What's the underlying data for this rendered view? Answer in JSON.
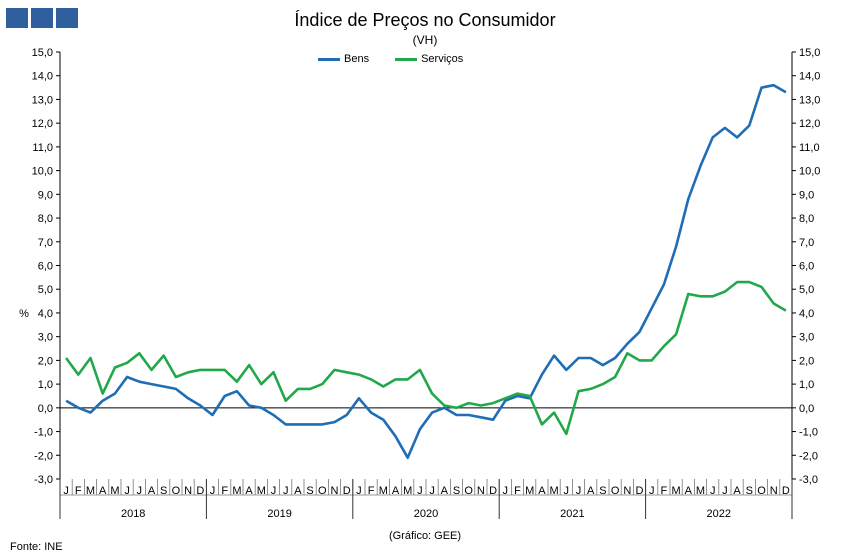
{
  "header": {
    "logo_icon": "ine-logo-icon"
  },
  "chart_data": {
    "type": "line",
    "title": "Índice de Preços no Consumidor",
    "subtitle": "(VH)",
    "ylabel": "%",
    "ylim": [
      -3.0,
      15.0
    ],
    "y_ticks": [
      "15,0",
      "14,0",
      "13,0",
      "12,0",
      "11,0",
      "10,0",
      "9,0",
      "8,0",
      "7,0",
      "6,0",
      "5,0",
      "4,0",
      "3,0",
      "2,0",
      "1,0",
      "0,0",
      "-1,0",
      "-2,0",
      "-3,0"
    ],
    "month_labels": [
      "J",
      "F",
      "M",
      "A",
      "M",
      "J",
      "J",
      "A",
      "S",
      "O",
      "N",
      "D",
      "J",
      "F",
      "M",
      "A",
      "M",
      "J",
      "J",
      "A",
      "S",
      "O",
      "N",
      "D",
      "J",
      "F",
      "M",
      "A",
      "M",
      "J",
      "J",
      "A",
      "S",
      "O",
      "N",
      "D",
      "J",
      "F",
      "M",
      "A",
      "M",
      "J",
      "J",
      "A",
      "S",
      "O",
      "N",
      "D",
      "J",
      "F",
      "M",
      "A",
      "M",
      "J",
      "J",
      "A",
      "S",
      "O",
      "N",
      "D"
    ],
    "years": [
      "2018",
      "2019",
      "2020",
      "2021",
      "2022"
    ],
    "series": [
      {
        "name": "Bens",
        "color": "#1f6db5",
        "values": [
          0.3,
          0.0,
          -0.2,
          0.3,
          0.6,
          1.3,
          1.1,
          1.0,
          0.9,
          0.8,
          0.4,
          0.1,
          -0.3,
          0.5,
          0.7,
          0.1,
          0.0,
          -0.3,
          -0.7,
          -0.7,
          -0.7,
          -0.7,
          -0.6,
          -0.3,
          0.4,
          -0.2,
          -0.5,
          -1.2,
          -2.1,
          -0.9,
          -0.2,
          0.0,
          -0.3,
          -0.3,
          -0.4,
          -0.5,
          0.3,
          0.5,
          0.4,
          1.4,
          2.2,
          1.6,
          2.1,
          2.1,
          1.8,
          2.1,
          2.7,
          3.2,
          4.2,
          5.2,
          6.8,
          8.8,
          10.2,
          11.4,
          11.8,
          11.4,
          11.9,
          13.5,
          13.6,
          13.3
        ]
      },
      {
        "name": "Serviços",
        "color": "#22a84a",
        "values": [
          2.1,
          1.4,
          2.1,
          0.6,
          1.7,
          1.9,
          2.3,
          1.6,
          2.2,
          1.3,
          1.5,
          1.6,
          1.6,
          1.6,
          1.1,
          1.8,
          1.0,
          1.5,
          0.3,
          0.8,
          0.8,
          1.0,
          1.6,
          1.5,
          1.4,
          1.2,
          0.9,
          1.2,
          1.2,
          1.6,
          0.6,
          0.1,
          0.0,
          0.2,
          0.1,
          0.2,
          0.4,
          0.6,
          0.5,
          -0.7,
          -0.2,
          -1.1,
          0.7,
          0.8,
          1.0,
          1.3,
          2.3,
          2.0,
          2.0,
          2.6,
          3.1,
          4.8,
          4.7,
          4.7,
          4.9,
          5.3,
          5.3,
          5.1,
          4.4,
          4.1
        ]
      }
    ],
    "legend_position": "top-center",
    "grid": false
  },
  "footer": {
    "source": "Fonte: INE",
    "note": "(Gráfico: GEE)"
  }
}
